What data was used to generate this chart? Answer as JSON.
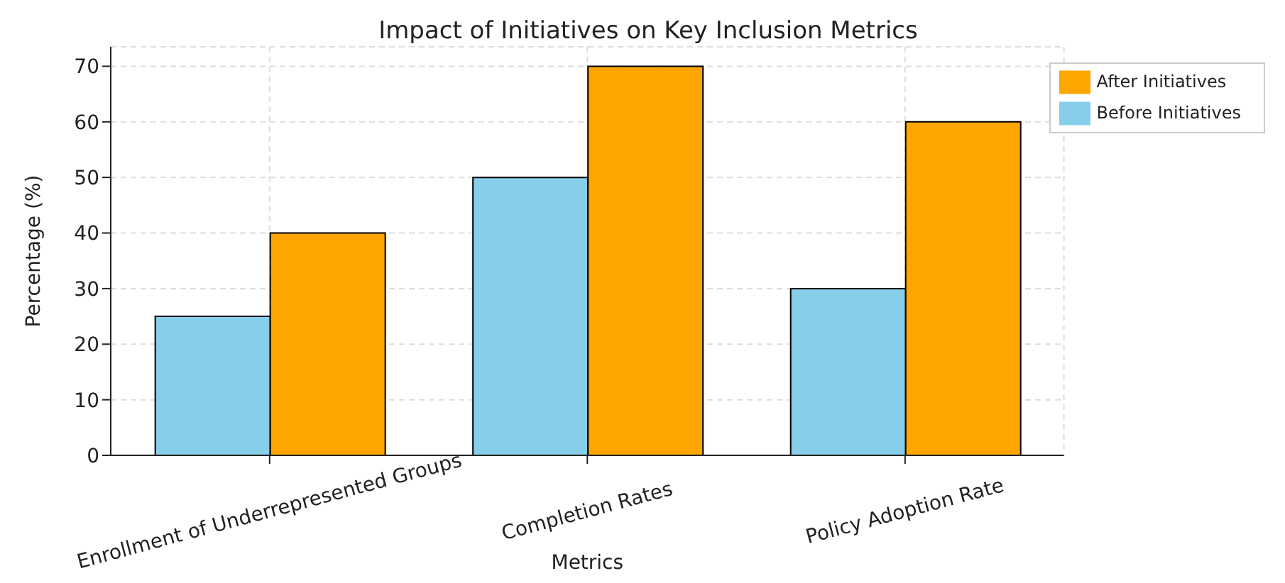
{
  "chart_data": {
    "type": "bar",
    "title": "Impact of Initiatives on Key Inclusion Metrics",
    "xlabel": "Metrics",
    "ylabel": "Percentage (%)",
    "categories": [
      "Enrollment of Underrepresented Groups",
      "Completion Rates",
      "Policy Adoption Rate"
    ],
    "series": [
      {
        "name": "Before Initiatives",
        "color": "#87ceeb",
        "values": [
          25,
          50,
          30
        ]
      },
      {
        "name": "After Initiatives",
        "color": "#ffa500",
        "values": [
          40,
          70,
          60
        ]
      }
    ],
    "ylim": [
      0,
      73.5
    ],
    "yticks": [
      0,
      10,
      20,
      30,
      40,
      50,
      60,
      70
    ],
    "grid": true,
    "legend": "top right"
  }
}
